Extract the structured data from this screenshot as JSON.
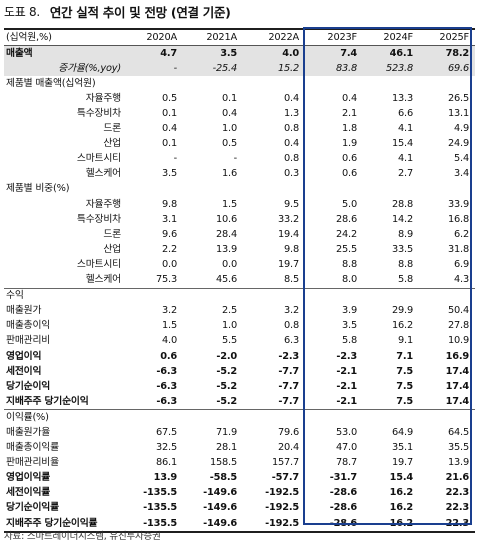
{
  "header": {
    "fig_label": "도표 8.",
    "fig_title": "연간 실적 추이 및 전망 (연결 기준)"
  },
  "table": {
    "unit_label": "(십억원,%)",
    "columns": [
      "2020A",
      "2021A",
      "2022A",
      "2023F",
      "2024F",
      "2025F"
    ],
    "rows": [
      {
        "label": "매출액",
        "values": [
          "4.7",
          "3.5",
          "4.0",
          "7.4",
          "46.1",
          "78.2"
        ],
        "style": "shade bold",
        "indent": false
      },
      {
        "label": "증가율(%,yoy)",
        "values": [
          "-",
          "-25.4",
          "15.2",
          "83.8",
          "523.8",
          "69.6"
        ],
        "style": "shade italic",
        "indent": true
      },
      {
        "label": "제품별 매출액(십억원)",
        "values": [
          "",
          "",
          "",
          "",
          "",
          ""
        ],
        "style": "",
        "indent": false
      },
      {
        "label": "자율주행",
        "values": [
          "0.5",
          "0.1",
          "0.4",
          "0.4",
          "13.3",
          "26.5"
        ],
        "style": "",
        "indent": true
      },
      {
        "label": "특수장비차",
        "values": [
          "0.1",
          "0.4",
          "1.3",
          "2.1",
          "6.6",
          "13.1"
        ],
        "style": "",
        "indent": true
      },
      {
        "label": "드론",
        "values": [
          "0.4",
          "1.0",
          "0.8",
          "1.8",
          "4.1",
          "4.9"
        ],
        "style": "",
        "indent": true
      },
      {
        "label": "산업",
        "values": [
          "0.1",
          "0.5",
          "0.4",
          "1.9",
          "15.4",
          "24.9"
        ],
        "style": "",
        "indent": true
      },
      {
        "label": "스마트시티",
        "values": [
          "-",
          "-",
          "0.8",
          "0.6",
          "4.1",
          "5.4"
        ],
        "style": "",
        "indent": true
      },
      {
        "label": "헬스케어",
        "values": [
          "3.5",
          "1.6",
          "0.3",
          "0.6",
          "2.7",
          "3.4"
        ],
        "style": "",
        "indent": true
      },
      {
        "label": "제품별 비중(%)",
        "values": [
          "",
          "",
          "",
          "",
          "",
          ""
        ],
        "style": "",
        "indent": false
      },
      {
        "label": "자율주행",
        "values": [
          "9.8",
          "1.5",
          "9.5",
          "5.0",
          "28.8",
          "33.9"
        ],
        "style": "",
        "indent": true
      },
      {
        "label": "특수장비차",
        "values": [
          "3.1",
          "10.6",
          "33.2",
          "28.6",
          "14.2",
          "16.8"
        ],
        "style": "",
        "indent": true
      },
      {
        "label": "드론",
        "values": [
          "9.6",
          "28.4",
          "19.4",
          "24.2",
          "8.9",
          "6.2"
        ],
        "style": "",
        "indent": true
      },
      {
        "label": "산업",
        "values": [
          "2.2",
          "13.9",
          "9.8",
          "25.5",
          "33.5",
          "31.8"
        ],
        "style": "",
        "indent": true
      },
      {
        "label": "스마트시티",
        "values": [
          "0.0",
          "0.0",
          "19.7",
          "8.8",
          "8.8",
          "6.9"
        ],
        "style": "",
        "indent": true
      },
      {
        "label": "헬스케어",
        "values": [
          "75.3",
          "45.6",
          "8.5",
          "8.0",
          "5.8",
          "4.3"
        ],
        "style": "",
        "indent": true
      },
      {
        "label": "수익",
        "values": [
          "",
          "",
          "",
          "",
          "",
          ""
        ],
        "style": "sep-top",
        "indent": false
      },
      {
        "label": "매출원가",
        "values": [
          "3.2",
          "2.5",
          "3.2",
          "3.9",
          "29.9",
          "50.4"
        ],
        "style": "",
        "indent": false
      },
      {
        "label": "매출총이익",
        "values": [
          "1.5",
          "1.0",
          "0.8",
          "3.5",
          "16.2",
          "27.8"
        ],
        "style": "",
        "indent": false
      },
      {
        "label": "판매관리비",
        "values": [
          "4.0",
          "5.5",
          "6.3",
          "5.8",
          "9.1",
          "10.9"
        ],
        "style": "",
        "indent": false
      },
      {
        "label": "영업이익",
        "values": [
          "0.6",
          "-2.0",
          "-2.3",
          "-2.3",
          "7.1",
          "16.9"
        ],
        "style": "bold",
        "indent": false
      },
      {
        "label": "세전이익",
        "values": [
          "-6.3",
          "-5.2",
          "-7.7",
          "-2.1",
          "7.5",
          "17.4"
        ],
        "style": "bold",
        "indent": false
      },
      {
        "label": "당기순이익",
        "values": [
          "-6.3",
          "-5.2",
          "-7.7",
          "-2.1",
          "7.5",
          "17.4"
        ],
        "style": "bold",
        "indent": false
      },
      {
        "label": "지배주주 당기순이익",
        "values": [
          "-6.3",
          "-5.2",
          "-7.7",
          "-2.1",
          "7.5",
          "17.4"
        ],
        "style": "bold",
        "indent": false
      },
      {
        "label": "이익률(%)",
        "values": [
          "",
          "",
          "",
          "",
          "",
          ""
        ],
        "style": "sep-top",
        "indent": false
      },
      {
        "label": "매출원가율",
        "values": [
          "67.5",
          "71.9",
          "79.6",
          "53.0",
          "64.9",
          "64.5"
        ],
        "style": "",
        "indent": false
      },
      {
        "label": "매출총이익률",
        "values": [
          "32.5",
          "28.1",
          "20.4",
          "47.0",
          "35.1",
          "35.5"
        ],
        "style": "",
        "indent": false
      },
      {
        "label": "판매관리비율",
        "values": [
          "86.1",
          "158.5",
          "157.7",
          "78.7",
          "19.7",
          "13.9"
        ],
        "style": "",
        "indent": false
      },
      {
        "label": "영업이익률",
        "values": [
          "13.9",
          "-58.5",
          "-57.7",
          "-31.7",
          "15.4",
          "21.6"
        ],
        "style": "bold",
        "indent": false
      },
      {
        "label": "세전이익률",
        "values": [
          "-135.5",
          "-149.6",
          "-192.5",
          "-28.6",
          "16.2",
          "22.3"
        ],
        "style": "bold",
        "indent": false
      },
      {
        "label": "당기순이익률",
        "values": [
          "-135.5",
          "-149.6",
          "-192.5",
          "-28.6",
          "16.2",
          "22.3"
        ],
        "style": "bold",
        "indent": false
      },
      {
        "label": "지배주주 당기순이익률",
        "values": [
          "-135.5",
          "-149.6",
          "-192.5",
          "-28.6",
          "16.2",
          "22.3"
        ],
        "style": "bold last",
        "indent": false
      }
    ]
  },
  "source": "자료: 스마트레이더시스템, 유진투자증권",
  "colors": {
    "forecast_box": "#1a3f8f",
    "shade": "#e3e3e3"
  }
}
